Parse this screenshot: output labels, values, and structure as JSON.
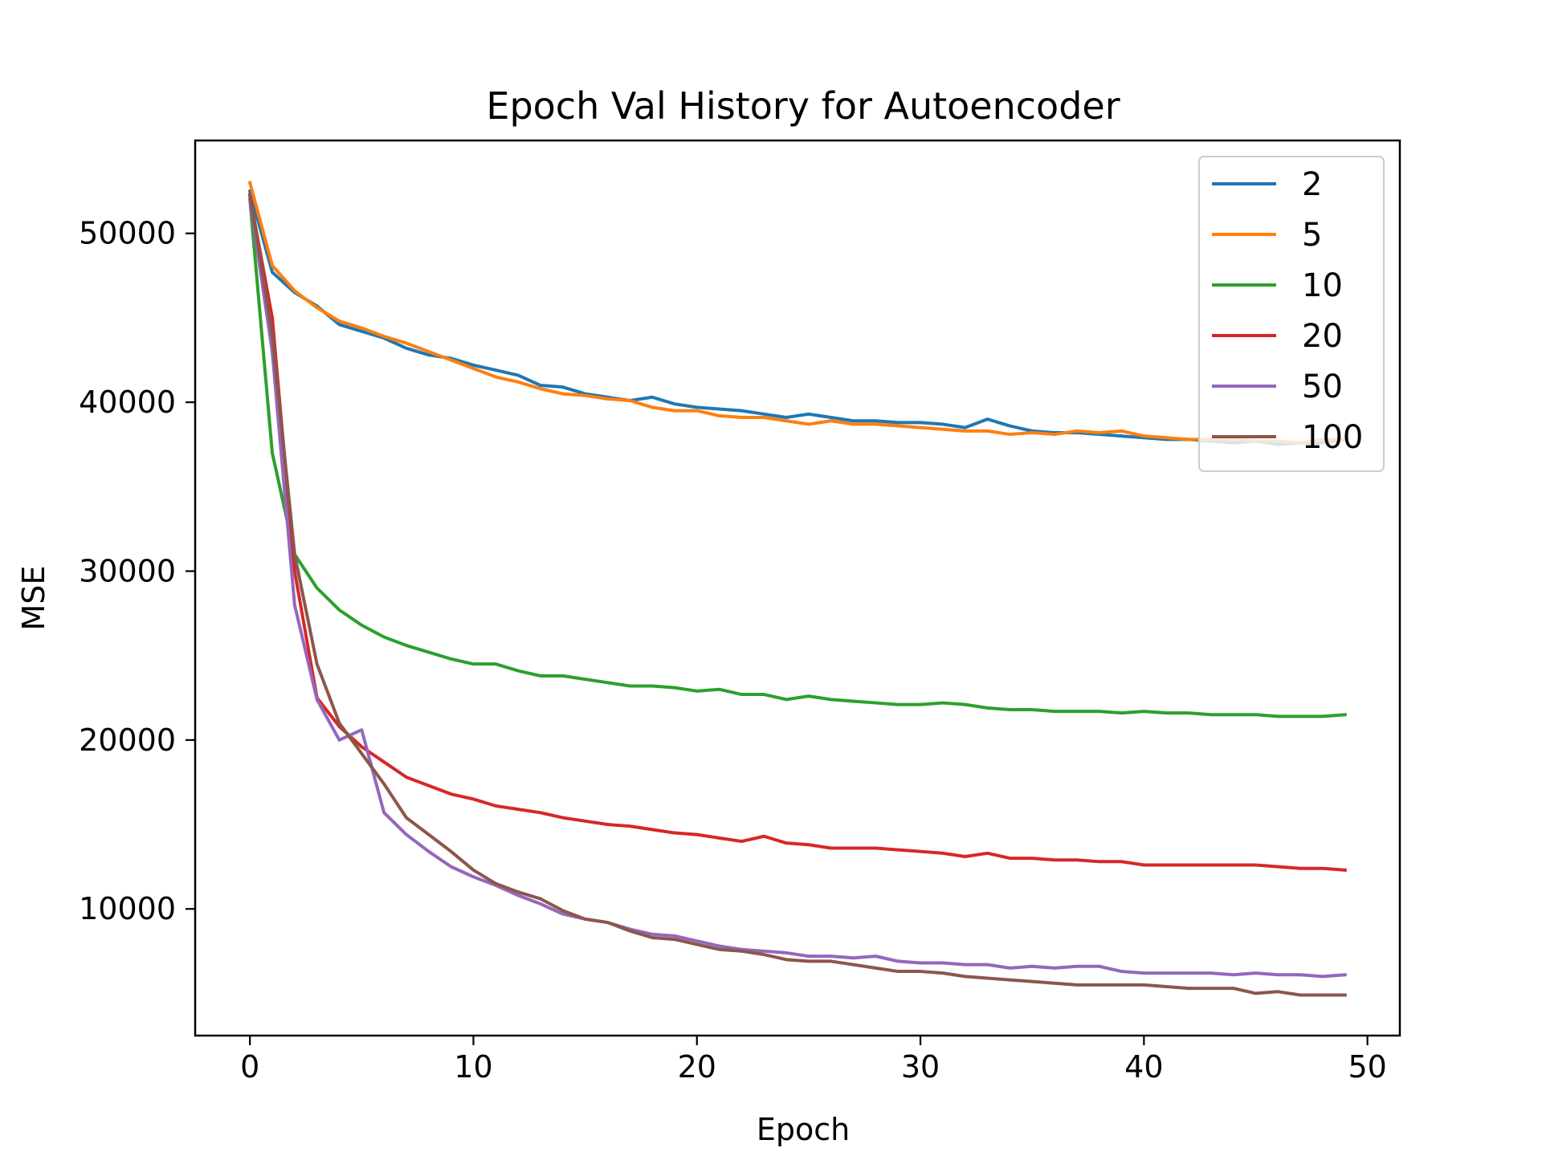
{
  "chart_data": {
    "type": "line",
    "title": "Epoch Val History for Autoencoder",
    "xlabel": "Epoch",
    "ylabel": "MSE",
    "xlim": [
      -2.45,
      51.45
    ],
    "ylim": [
      2500,
      55500
    ],
    "xticks": [
      0,
      10,
      20,
      30,
      40,
      50
    ],
    "yticks": [
      10000,
      20000,
      30000,
      40000,
      50000
    ],
    "x": [
      0,
      1,
      2,
      3,
      4,
      5,
      6,
      7,
      8,
      9,
      10,
      11,
      12,
      13,
      14,
      15,
      16,
      17,
      18,
      19,
      20,
      21,
      22,
      23,
      24,
      25,
      26,
      27,
      28,
      29,
      30,
      31,
      32,
      33,
      34,
      35,
      36,
      37,
      38,
      39,
      40,
      41,
      42,
      43,
      44,
      45,
      46,
      47,
      48,
      49
    ],
    "legend_position": "upper right",
    "grid": false,
    "series": [
      {
        "name": "2",
        "color": "#1f77b4",
        "values": [
          52500,
          47700,
          46500,
          45700,
          44600,
          44200,
          43800,
          43200,
          42800,
          42600,
          42200,
          41900,
          41600,
          41000,
          40900,
          40500,
          40300,
          40100,
          40300,
          39900,
          39700,
          39600,
          39500,
          39300,
          39100,
          39300,
          39100,
          38900,
          38900,
          38800,
          38800,
          38700,
          38500,
          39000,
          38600,
          38300,
          38200,
          38200,
          38100,
          38000,
          37900,
          37800,
          37800,
          37700,
          37600,
          37700,
          37500,
          37600,
          37600,
          37800
        ]
      },
      {
        "name": "5",
        "color": "#ff7f0e",
        "values": [
          53000,
          48100,
          46600,
          45600,
          44800,
          44400,
          43900,
          43500,
          43000,
          42500,
          42000,
          41500,
          41200,
          40800,
          40500,
          40400,
          40200,
          40100,
          39700,
          39500,
          39500,
          39200,
          39100,
          39100,
          38900,
          38700,
          38900,
          38700,
          38700,
          38600,
          38500,
          38400,
          38300,
          38300,
          38100,
          38200,
          38100,
          38300,
          38200,
          38300,
          38000,
          37900,
          37800,
          37800,
          37800,
          37700,
          37700,
          37600,
          37800,
          37800
        ]
      },
      {
        "name": "10",
        "color": "#2ca02c",
        "values": [
          52000,
          37000,
          31000,
          29000,
          27700,
          26800,
          26100,
          25600,
          25200,
          24800,
          24500,
          24500,
          24100,
          23800,
          23800,
          23600,
          23400,
          23200,
          23200,
          23100,
          22900,
          23000,
          22700,
          22700,
          22400,
          22600,
          22400,
          22300,
          22200,
          22100,
          22100,
          22200,
          22100,
          21900,
          21800,
          21800,
          21700,
          21700,
          21700,
          21600,
          21700,
          21600,
          21600,
          21500,
          21500,
          21500,
          21400,
          21400,
          21400,
          21500
        ]
      },
      {
        "name": "20",
        "color": "#d62728",
        "values": [
          52200,
          45000,
          30000,
          22500,
          20800,
          19600,
          18700,
          17800,
          17300,
          16800,
          16500,
          16100,
          15900,
          15700,
          15400,
          15200,
          15000,
          14900,
          14700,
          14500,
          14400,
          14200,
          14000,
          14300,
          13900,
          13800,
          13600,
          13600,
          13600,
          13500,
          13400,
          13300,
          13100,
          13300,
          13000,
          13000,
          12900,
          12900,
          12800,
          12800,
          12600,
          12600,
          12600,
          12600,
          12600,
          12600,
          12500,
          12400,
          12400,
          12300
        ]
      },
      {
        "name": "50",
        "color": "#9467bd",
        "values": [
          52000,
          43000,
          28000,
          22400,
          20000,
          20600,
          15700,
          14400,
          13400,
          12500,
          11900,
          11400,
          10800,
          10300,
          9700,
          9400,
          9200,
          8800,
          8500,
          8400,
          8100,
          7800,
          7600,
          7500,
          7400,
          7200,
          7200,
          7100,
          7200,
          6900,
          6800,
          6800,
          6700,
          6700,
          6500,
          6600,
          6500,
          6600,
          6600,
          6300,
          6200,
          6200,
          6200,
          6200,
          6100,
          6200,
          6100,
          6100,
          6000,
          6100
        ]
      },
      {
        "name": "100",
        "color": "#8c564b",
        "values": [
          52300,
          44000,
          31000,
          24500,
          21000,
          19200,
          17400,
          15400,
          14400,
          13400,
          12300,
          11500,
          11000,
          10600,
          9900,
          9400,
          9200,
          8700,
          8300,
          8200,
          7900,
          7600,
          7500,
          7300,
          7000,
          6900,
          6900,
          6700,
          6500,
          6300,
          6300,
          6200,
          6000,
          5900,
          5800,
          5700,
          5600,
          5500,
          5500,
          5500,
          5500,
          5400,
          5300,
          5300,
          5300,
          5000,
          5100,
          4900,
          4900,
          4900
        ]
      }
    ]
  }
}
